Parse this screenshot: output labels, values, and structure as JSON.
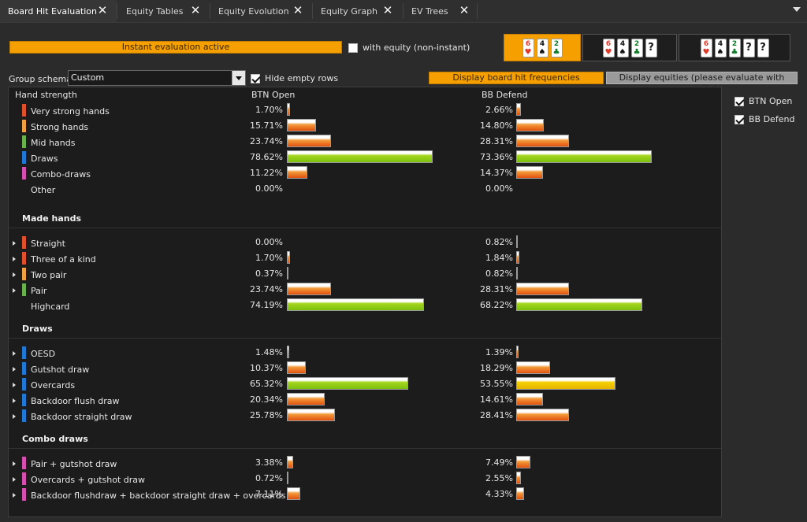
{
  "tabs": [
    {
      "label": "Board Hit Evaluation",
      "active": true
    },
    {
      "label": "Equity Tables",
      "active": false
    },
    {
      "label": "Equity Evolution",
      "active": false
    },
    {
      "label": "Equity Graph",
      "active": false
    },
    {
      "label": "EV Trees",
      "active": false
    }
  ],
  "controls": {
    "instant_status": "Instant evaluation active",
    "with_equity_label": "with equity (non-instant)",
    "with_equity_checked": false,
    "group_schema_label": "Group schema:",
    "group_schema_value": "Custom",
    "hide_empty_label": "Hide empty rows",
    "hide_empty_checked": true,
    "display_hit_freq_label": "Display board hit frequencies",
    "display_equities_label": "Display equities (please evaluate with equity)"
  },
  "boards": [
    {
      "cards": [
        {
          "rank": "6",
          "suit": "hearts"
        },
        {
          "rank": "4",
          "suit": "spades"
        },
        {
          "rank": "2",
          "suit": "clubs"
        }
      ],
      "unknown": 0,
      "selected": true
    },
    {
      "cards": [
        {
          "rank": "6",
          "suit": "hearts"
        },
        {
          "rank": "4",
          "suit": "spades"
        },
        {
          "rank": "2",
          "suit": "clubs"
        }
      ],
      "unknown": 1,
      "selected": false
    },
    {
      "cards": [
        {
          "rank": "6",
          "suit": "hearts"
        },
        {
          "rank": "4",
          "suit": "spades"
        },
        {
          "rank": "2",
          "suit": "clubs"
        }
      ],
      "unknown": 2,
      "selected": false
    }
  ],
  "table": {
    "header": {
      "strength": "Hand strength",
      "btn": "BTN Open",
      "bb": "BB Defend"
    },
    "summary": [
      {
        "label": "Very strong hands",
        "color": "#e0502a",
        "btn": "1.70%",
        "bb": "2.66%",
        "btn_v": 1.7,
        "bb_v": 2.66,
        "btn_style": "orange",
        "bb_style": "orange"
      },
      {
        "label": "Strong hands",
        "color": "#f0a040",
        "btn": "15.71%",
        "bb": "14.80%",
        "btn_v": 15.71,
        "bb_v": 14.8,
        "btn_style": "orange",
        "bb_style": "orange"
      },
      {
        "label": "Mid hands",
        "color": "#6ab04c",
        "btn": "23.74%",
        "bb": "28.31%",
        "btn_v": 23.74,
        "bb_v": 28.31,
        "btn_style": "orange",
        "bb_style": "orange"
      },
      {
        "label": "Draws",
        "color": "#1f78d6",
        "btn": "78.62%",
        "bb": "73.36%",
        "btn_v": 78.62,
        "bb_v": 73.36,
        "btn_style": "green",
        "bb_style": "green"
      },
      {
        "label": "Combo-draws",
        "color": "#d64fb0",
        "btn": "11.22%",
        "bb": "14.37%",
        "btn_v": 11.22,
        "bb_v": 14.37,
        "btn_style": "orange",
        "bb_style": "orange"
      },
      {
        "label": "Other",
        "color": "",
        "btn": "0.00%",
        "bb": "0.00%",
        "btn_v": 0,
        "bb_v": 0,
        "btn_style": "orange",
        "bb_style": "orange"
      }
    ],
    "sections": [
      {
        "title": "Made hands",
        "rows": [
          {
            "label": "Straight",
            "color": "#e0502a",
            "expand": true,
            "btn": "0.00%",
            "bb": "0.82%",
            "btn_v": 0,
            "bb_v": 0.82,
            "btn_style": "orange",
            "bb_style": "orange"
          },
          {
            "label": "Three of a kind",
            "color": "#e0502a",
            "expand": true,
            "btn": "1.70%",
            "bb": "1.84%",
            "btn_v": 1.7,
            "bb_v": 1.84,
            "btn_style": "orange",
            "bb_style": "orange"
          },
          {
            "label": "Two pair",
            "color": "#f0a040",
            "expand": true,
            "btn": "0.37%",
            "bb": "0.82%",
            "btn_v": 0.37,
            "bb_v": 0.82,
            "btn_style": "orange",
            "bb_style": "orange"
          },
          {
            "label": "Pair",
            "color": "#6ab04c",
            "expand": true,
            "btn": "23.74%",
            "bb": "28.31%",
            "btn_v": 23.74,
            "bb_v": 28.31,
            "btn_style": "orange",
            "bb_style": "orange"
          },
          {
            "label": "Highcard",
            "color": "",
            "expand": false,
            "btn": "74.19%",
            "bb": "68.22%",
            "btn_v": 74.19,
            "bb_v": 68.22,
            "btn_style": "green",
            "bb_style": "green"
          }
        ]
      },
      {
        "title": "Draws",
        "rows": [
          {
            "label": "OESD",
            "color": "#1f78d6",
            "expand": true,
            "btn": "1.48%",
            "bb": "1.39%",
            "btn_v": 1.48,
            "bb_v": 1.39,
            "btn_style": "orange",
            "bb_style": "orange"
          },
          {
            "label": "Gutshot draw",
            "color": "#1f78d6",
            "expand": true,
            "btn": "10.37%",
            "bb": "18.29%",
            "btn_v": 10.37,
            "bb_v": 18.29,
            "btn_style": "orange",
            "bb_style": "orange"
          },
          {
            "label": "Overcards",
            "color": "#1f78d6",
            "expand": true,
            "btn": "65.32%",
            "bb": "53.55%",
            "btn_v": 65.32,
            "bb_v": 53.55,
            "btn_style": "green",
            "bb_style": "yellow"
          },
          {
            "label": "Backdoor flush draw",
            "color": "#1f78d6",
            "expand": true,
            "btn": "20.34%",
            "bb": "14.61%",
            "btn_v": 20.34,
            "bb_v": 14.61,
            "btn_style": "orange",
            "bb_style": "orange"
          },
          {
            "label": "Backdoor straight draw",
            "color": "#1f78d6",
            "expand": true,
            "btn": "25.78%",
            "bb": "28.41%",
            "btn_v": 25.78,
            "bb_v": 28.41,
            "btn_style": "orange",
            "bb_style": "orange"
          }
        ]
      },
      {
        "title": "Combo draws",
        "rows": [
          {
            "label": "Pair + gutshot draw",
            "color": "#d64fb0",
            "expand": true,
            "btn": "3.38%",
            "bb": "7.49%",
            "btn_v": 3.38,
            "bb_v": 7.49,
            "btn_style": "orange",
            "bb_style": "orange"
          },
          {
            "label": "Overcards + gutshot draw",
            "color": "#d64fb0",
            "expand": true,
            "btn": "0.72%",
            "bb": "2.55%",
            "btn_v": 0.72,
            "bb_v": 2.55,
            "btn_style": "orange",
            "bb_style": "orange"
          },
          {
            "label": "Backdoor flushdraw + backdoor straight draw + overcards",
            "color": "#d64fb0",
            "expand": true,
            "btn": "7.11%",
            "bb": "4.33%",
            "btn_v": 7.11,
            "bb_v": 4.33,
            "btn_style": "orange",
            "bb_style": "orange"
          }
        ]
      }
    ]
  },
  "ranges": [
    {
      "label": "BTN Open",
      "checked": true
    },
    {
      "label": "BB Defend",
      "checked": true
    }
  ]
}
